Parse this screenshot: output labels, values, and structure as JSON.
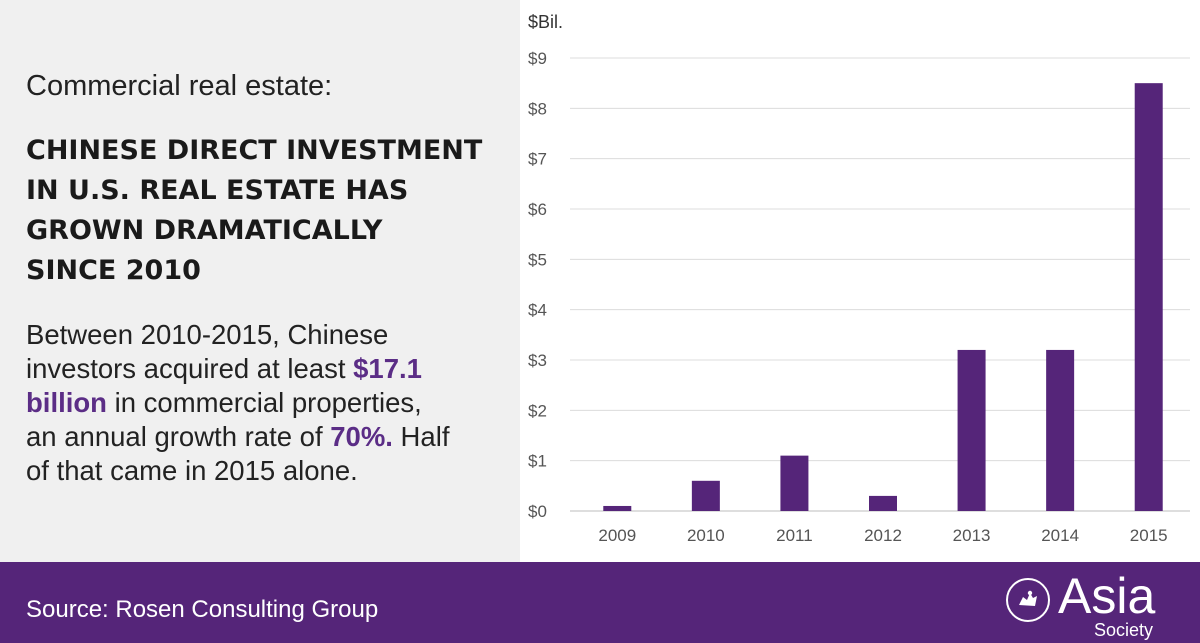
{
  "left": {
    "kicker": "Commercial real estate:",
    "headline_lines": [
      "CHINESE DIRECT INVESTMENT",
      "IN U.S. REAL ESTATE HAS",
      "GROWN DRAMATICALLY",
      "SINCE 2010"
    ],
    "body": {
      "l1": "Between 2010-2015, Chinese",
      "l2_a": "investors acquired at least ",
      "l2_b": "$17.1",
      "l3_a": "billion",
      "l3_b": " in commercial properties,",
      "l4_a": "an annual growth rate of ",
      "l4_b": "70%.",
      "l4_c": " Half",
      "l5": "of that came in 2015 alone."
    }
  },
  "footer": {
    "source": "Source: Rosen Consulting Group",
    "logo_word": "Asia",
    "logo_sub": "Society",
    "logo_icon": "asia-society-emblem-icon"
  },
  "colors": {
    "accent": "#5b2d86",
    "bar": "#552579",
    "footer_bg": "#552579",
    "left_panel_bg": "#f0f0f0"
  },
  "chart_data": {
    "type": "bar",
    "unit_label": "$Bil.",
    "categories": [
      "2009",
      "2010",
      "2011",
      "2012",
      "2013",
      "2014",
      "2015"
    ],
    "values": [
      0.1,
      0.6,
      1.1,
      0.3,
      3.2,
      3.2,
      8.5
    ],
    "ylim": [
      0,
      9
    ],
    "yticks": [
      "$0",
      "$1",
      "$2",
      "$3",
      "$4",
      "$5",
      "$6",
      "$7",
      "$8",
      "$9"
    ],
    "grid": true,
    "legend": "none"
  }
}
